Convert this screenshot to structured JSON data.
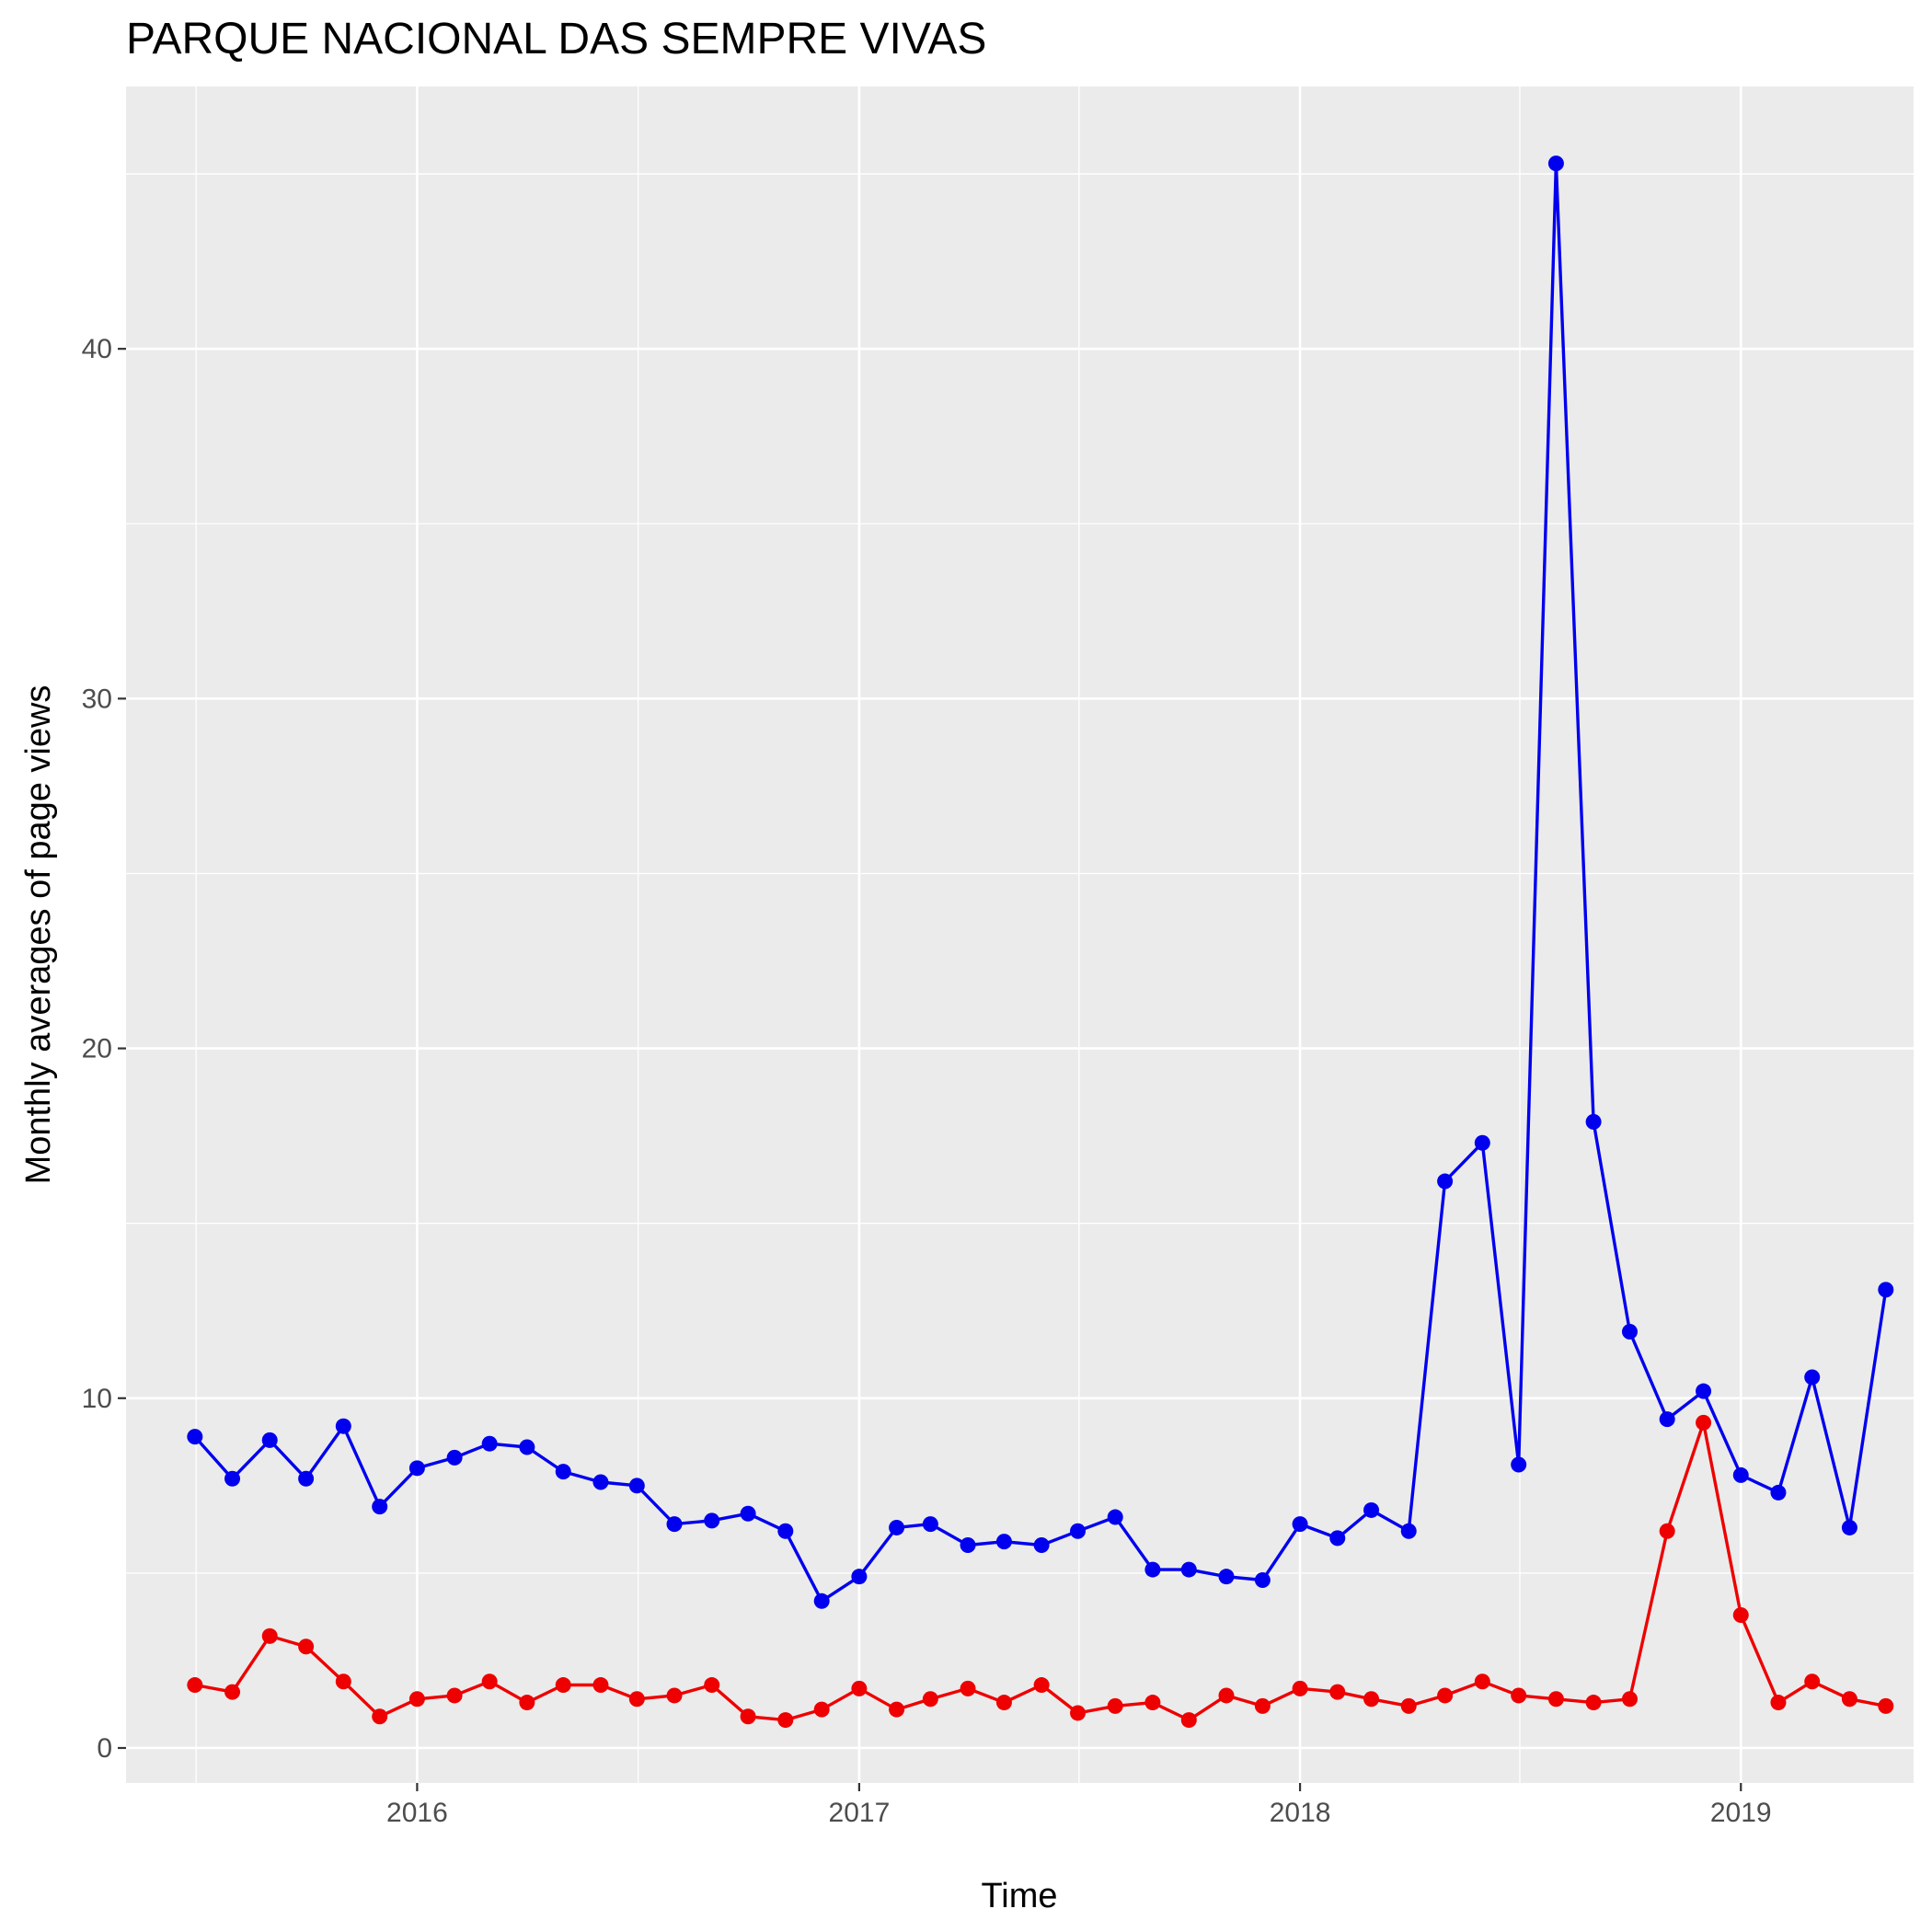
{
  "chart_data": {
    "type": "line",
    "title": "PARQUE NACIONAL DAS SEMPRE VIVAS",
    "xlabel": "Time",
    "ylabel": "Monthly averages of page views",
    "x_ticks": [
      {
        "value": "2016-01-01",
        "label": "2016"
      },
      {
        "value": "2017-01-01",
        "label": "2017"
      },
      {
        "value": "2018-01-01",
        "label": "2018"
      },
      {
        "value": "2019-01-01",
        "label": "2019"
      }
    ],
    "y_ticks": [
      0,
      10,
      20,
      30,
      40
    ],
    "ylim": [
      -1.0,
      47.5
    ],
    "xlim": [
      "2015-05-05",
      "2019-05-24"
    ],
    "grid": true,
    "background": "#ebebeb",
    "x": [
      "2015-07-01",
      "2015-08-01",
      "2015-09-01",
      "2015-10-01",
      "2015-11-01",
      "2015-12-01",
      "2016-01-01",
      "2016-02-01",
      "2016-03-01",
      "2016-04-01",
      "2016-05-01",
      "2016-06-01",
      "2016-07-01",
      "2016-08-01",
      "2016-09-01",
      "2016-10-01",
      "2016-11-01",
      "2016-12-01",
      "2017-01-01",
      "2017-02-01",
      "2017-03-01",
      "2017-04-01",
      "2017-05-01",
      "2017-06-01",
      "2017-07-01",
      "2017-08-01",
      "2017-09-01",
      "2017-10-01",
      "2017-11-01",
      "2017-12-01",
      "2018-01-01",
      "2018-02-01",
      "2018-03-01",
      "2018-04-01",
      "2018-05-01",
      "2018-06-01",
      "2018-07-01",
      "2018-08-01",
      "2018-09-01",
      "2018-10-01",
      "2018-11-01",
      "2018-12-01",
      "2019-01-01",
      "2019-02-01",
      "2019-03-01",
      "2019-04-01",
      "2019-05-01"
    ],
    "series": [
      {
        "color": "#0000ee",
        "values": [
          8.9,
          7.7,
          8.8,
          7.7,
          9.2,
          6.9,
          8.0,
          8.3,
          8.7,
          8.6,
          7.9,
          7.6,
          7.5,
          6.4,
          6.5,
          6.7,
          6.2,
          4.2,
          4.9,
          6.3,
          6.4,
          5.8,
          5.9,
          5.8,
          6.2,
          6.6,
          5.1,
          5.1,
          4.9,
          4.8,
          6.4,
          6.0,
          6.8,
          6.2,
          16.2,
          17.3,
          8.1,
          45.3,
          17.9,
          11.9,
          9.4,
          10.2,
          7.8,
          7.3,
          10.6,
          6.3,
          13.1
        ]
      },
      {
        "color": "#ee0000",
        "values": [
          1.8,
          1.6,
          3.2,
          2.9,
          1.9,
          0.9,
          1.4,
          1.5,
          1.9,
          1.3,
          1.8,
          1.8,
          1.4,
          1.5,
          1.8,
          0.9,
          0.8,
          1.1,
          1.7,
          1.1,
          1.4,
          1.7,
          1.3,
          1.8,
          1.0,
          1.2,
          1.3,
          0.8,
          1.5,
          1.2,
          1.7,
          1.6,
          1.4,
          1.2,
          1.5,
          1.9,
          1.5,
          1.4,
          1.3,
          1.4,
          6.2,
          9.3,
          3.8,
          1.3,
          1.9,
          1.4,
          1.2
        ]
      }
    ]
  }
}
